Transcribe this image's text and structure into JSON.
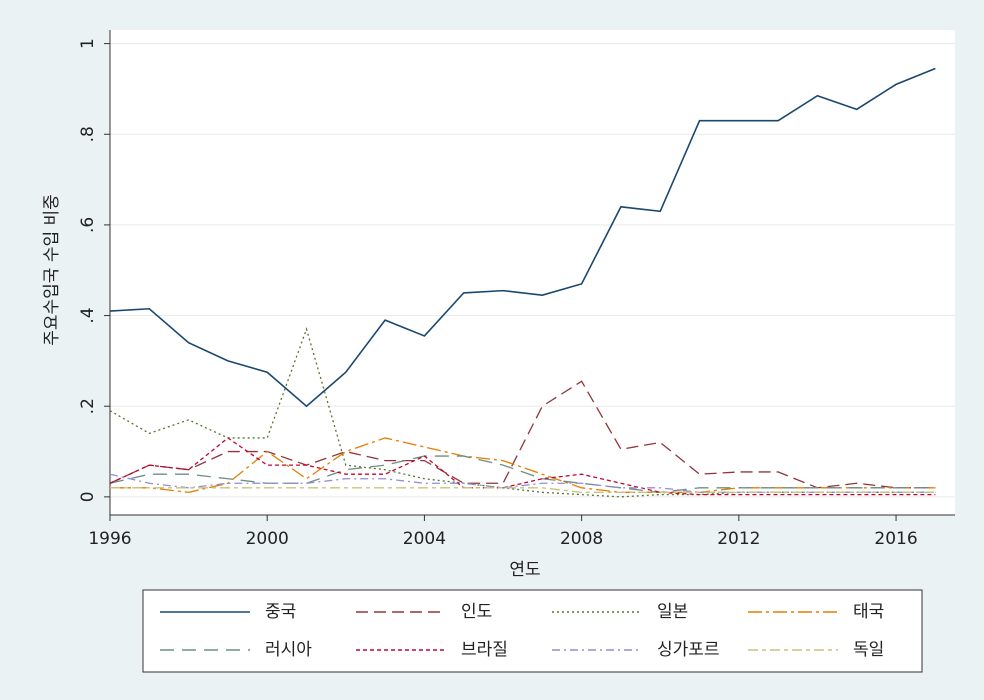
{
  "chart_data": {
    "type": "line",
    "x_label": "연도",
    "y_label": "주요수입국 수입 비중",
    "x": [
      1996,
      1997,
      1998,
      1999,
      2000,
      2001,
      2002,
      2003,
      2004,
      2005,
      2006,
      2007,
      2008,
      2009,
      2010,
      2011,
      2012,
      2013,
      2014,
      2015,
      2016,
      2017
    ],
    "series": [
      {
        "name": "중국",
        "color": "#1a476f",
        "values": [
          0.41,
          0.415,
          0.34,
          0.3,
          0.275,
          0.2,
          0.275,
          0.39,
          0.355,
          0.45,
          0.455,
          0.445,
          0.47,
          0.64,
          0.63,
          0.83,
          0.83,
          0.83,
          0.885,
          0.855,
          0.91,
          0.945
        ]
      },
      {
        "name": "인도",
        "color": "#90353b",
        "values": [
          0.03,
          0.07,
          0.06,
          0.1,
          0.1,
          0.07,
          0.1,
          0.08,
          0.08,
          0.03,
          0.03,
          0.2,
          0.255,
          0.105,
          0.12,
          0.05,
          0.055,
          0.055,
          0.02,
          0.03,
          0.02,
          0.02
        ]
      },
      {
        "name": "일본",
        "color": "#55752f",
        "values": [
          0.19,
          0.14,
          0.17,
          0.13,
          0.13,
          0.37,
          0.07,
          0.06,
          0.04,
          0.03,
          0.02,
          0.01,
          0.005,
          0,
          0.005,
          0.005,
          0.01,
          0.01,
          0.01,
          0.01,
          0.01,
          0.01
        ]
      },
      {
        "name": "태국",
        "color": "#e37e00",
        "values": [
          0.02,
          0.02,
          0.01,
          0.03,
          0.1,
          0.04,
          0.1,
          0.13,
          0.11,
          0.09,
          0.08,
          0.05,
          0.02,
          0.01,
          0.01,
          0.01,
          0.02,
          0.02,
          0.02,
          0.02,
          0.02,
          0.02
        ]
      },
      {
        "name": "러시아",
        "color": "#6e8e84",
        "values": [
          0.03,
          0.05,
          0.05,
          0.04,
          0.03,
          0.03,
          0.06,
          0.07,
          0.09,
          0.09,
          0.07,
          0.04,
          0.03,
          0.02,
          0.01,
          0.02,
          0.02,
          0.02,
          0.02,
          0.02,
          0.02,
          0.02
        ]
      },
      {
        "name": "브라질",
        "color": "#c10534",
        "values": [
          0.03,
          0.07,
          0.06,
          0.13,
          0.07,
          0.07,
          0.05,
          0.05,
          0.09,
          0.02,
          0.02,
          0.04,
          0.05,
          0.03,
          0.01,
          0.005,
          0.005,
          0.005,
          0.005,
          0.005,
          0.005,
          0.005
        ]
      },
      {
        "name": "싱가포르",
        "color": "#938dd2",
        "values": [
          0.05,
          0.03,
          0.02,
          0.03,
          0.03,
          0.03,
          0.04,
          0.04,
          0.03,
          0.03,
          0.02,
          0.03,
          0.03,
          0.02,
          0.02,
          0.01,
          0.01,
          0.01,
          0.01,
          0.01,
          0.01,
          0.01
        ]
      },
      {
        "name": "독일",
        "color": "#cac27e",
        "values": [
          0.02,
          0.02,
          0.02,
          0.02,
          0.02,
          0.02,
          0.02,
          0.02,
          0.02,
          0.02,
          0.02,
          0.02,
          0.01,
          0.01,
          0.01,
          0.01,
          0.01,
          0.01,
          0.01,
          0.01,
          0.01,
          0.01
        ]
      }
    ],
    "xlim": [
      1996,
      2017.5
    ],
    "xticks": [
      1996,
      2000,
      2004,
      2008,
      2012,
      2016
    ],
    "ylim": [
      -0.04,
      1.03
    ],
    "yticks": [
      0,
      {
        "value": 0.2,
        "label": ".2"
      },
      {
        "value": 0.4,
        "label": ".4"
      },
      {
        "value": 0.6,
        "label": ".6"
      },
      {
        "value": 0.8,
        "label": ".8"
      },
      1
    ],
    "grid": true
  }
}
